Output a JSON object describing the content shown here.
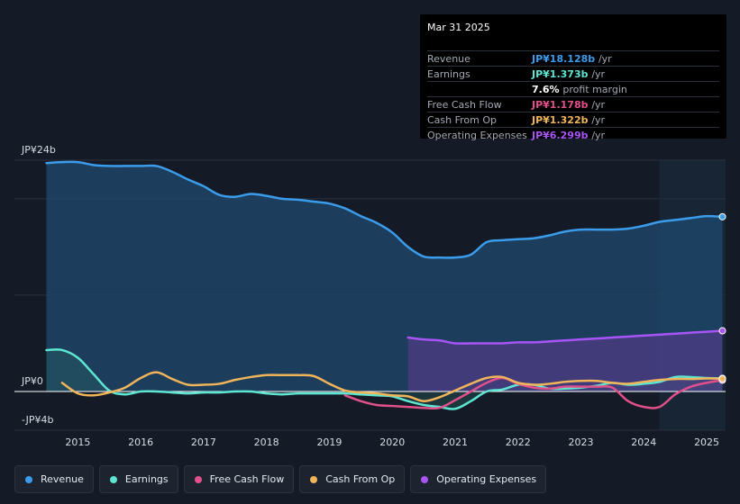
{
  "tooltip": {
    "date": "Mar 31 2025",
    "rows": [
      {
        "label": "Revenue",
        "value": "JP¥18.128b",
        "unit": "/yr",
        "color": "#3b9cec"
      },
      {
        "label": "Earnings",
        "value": "JP¥1.373b",
        "unit": "/yr",
        "color": "#5ee6d2"
      },
      {
        "label": "",
        "value": "7.6%",
        "unit": "profit margin",
        "color": "#ffffff"
      },
      {
        "label": "Free Cash Flow",
        "value": "JP¥1.178b",
        "unit": "/yr",
        "color": "#e0508a"
      },
      {
        "label": "Cash From Op",
        "value": "JP¥1.322b",
        "unit": "/yr",
        "color": "#f0b45a"
      },
      {
        "label": "Operating Expenses",
        "value": "JP¥6.299b",
        "unit": "/yr",
        "color": "#a855f7"
      }
    ]
  },
  "legend": [
    {
      "label": "Revenue",
      "color": "#3b9cec"
    },
    {
      "label": "Earnings",
      "color": "#5ee6d2"
    },
    {
      "label": "Free Cash Flow",
      "color": "#e0508a"
    },
    {
      "label": "Cash From Op",
      "color": "#f0b45a"
    },
    {
      "label": "Operating Expenses",
      "color": "#a855f7"
    }
  ],
  "chart_data": {
    "type": "area",
    "title": "",
    "xlabel": "",
    "ylabel": "",
    "y_tick_labels": [
      "JP¥24b",
      "JP¥0",
      "-JP¥4b"
    ],
    "ylim": [
      -4,
      24
    ],
    "xlim": [
      2014.45,
      2025.3
    ],
    "x_ticks": [
      2015,
      2016,
      2017,
      2018,
      2019,
      2020,
      2021,
      2022,
      2023,
      2024,
      2025
    ],
    "x_tick_labels": [
      "2015",
      "2016",
      "2017",
      "2018",
      "2019",
      "2020",
      "2021",
      "2022",
      "2023",
      "2024",
      "2025"
    ],
    "forecast_start": 2024.25,
    "series": [
      {
        "name": "Revenue",
        "color": "#3b9cec",
        "x": [
          2014.5,
          2014.75,
          2015.0,
          2015.25,
          2015.5,
          2015.75,
          2016.0,
          2016.25,
          2016.5,
          2016.75,
          2017.0,
          2017.25,
          2017.5,
          2017.75,
          2018.0,
          2018.25,
          2018.5,
          2018.75,
          2019.0,
          2019.25,
          2019.5,
          2019.75,
          2020.0,
          2020.25,
          2020.5,
          2020.75,
          2021.0,
          2021.25,
          2021.5,
          2021.75,
          2022.0,
          2022.25,
          2022.5,
          2022.75,
          2023.0,
          2023.25,
          2023.5,
          2023.75,
          2024.0,
          2024.25,
          2024.5,
          2024.75,
          2025.0,
          2025.25
        ],
        "values": [
          23.7,
          23.8,
          23.8,
          23.5,
          23.4,
          23.4,
          23.4,
          23.4,
          22.8,
          22.0,
          21.3,
          20.4,
          20.2,
          20.5,
          20.3,
          20.0,
          19.9,
          19.7,
          19.5,
          19.0,
          18.2,
          17.5,
          16.5,
          15.0,
          14.0,
          13.9,
          13.9,
          14.2,
          15.5,
          15.7,
          15.8,
          15.9,
          16.2,
          16.6,
          16.8,
          16.8,
          16.8,
          16.9,
          17.2,
          17.6,
          17.8,
          18.0,
          18.2,
          18.13
        ]
      },
      {
        "name": "Earnings",
        "color": "#5ee6d2",
        "x": [
          2014.5,
          2014.75,
          2015.0,
          2015.25,
          2015.5,
          2015.75,
          2016.0,
          2016.25,
          2016.5,
          2016.75,
          2017.0,
          2017.25,
          2017.5,
          2017.75,
          2018.0,
          2018.25,
          2018.5,
          2018.75,
          2019.0,
          2019.25,
          2019.5,
          2019.75,
          2020.0,
          2020.25,
          2020.5,
          2020.75,
          2021.0,
          2021.25,
          2021.5,
          2021.75,
          2022.0,
          2022.25,
          2022.5,
          2022.75,
          2023.0,
          2023.25,
          2023.5,
          2023.75,
          2024.0,
          2024.25,
          2024.5,
          2024.75,
          2025.0,
          2025.25
        ],
        "values": [
          4.3,
          4.3,
          3.5,
          1.8,
          0.1,
          -0.3,
          0.0,
          0.0,
          -0.1,
          -0.2,
          -0.1,
          -0.1,
          0.0,
          0.0,
          -0.2,
          -0.3,
          -0.2,
          -0.2,
          -0.2,
          -0.2,
          -0.3,
          -0.4,
          -0.5,
          -1.0,
          -1.4,
          -1.6,
          -1.8,
          -1.0,
          0.0,
          0.2,
          0.7,
          0.7,
          0.3,
          0.3,
          0.4,
          0.6,
          0.9,
          0.7,
          0.8,
          1.0,
          1.5,
          1.5,
          1.4,
          1.37
        ]
      },
      {
        "name": "Free Cash Flow",
        "color": "#e0508a",
        "x": [
          2019.25,
          2019.5,
          2019.75,
          2020.0,
          2020.25,
          2020.5,
          2020.75,
          2021.0,
          2021.25,
          2021.5,
          2021.75,
          2022.0,
          2022.25,
          2022.5,
          2022.75,
          2023.0,
          2023.25,
          2023.5,
          2023.75,
          2024.0,
          2024.25,
          2024.5,
          2024.75,
          2025.0,
          2025.25
        ],
        "values": [
          -0.4,
          -1.0,
          -1.4,
          -1.5,
          -1.6,
          -1.7,
          -1.7,
          -0.9,
          0.0,
          0.9,
          1.4,
          0.8,
          0.4,
          0.3,
          0.5,
          0.5,
          0.5,
          0.4,
          -1.0,
          -1.6,
          -1.6,
          -0.3,
          0.5,
          0.9,
          1.18
        ]
      },
      {
        "name": "Cash From Op",
        "color": "#f0b45a",
        "x": [
          2014.75,
          2015.0,
          2015.25,
          2015.5,
          2015.75,
          2016.0,
          2016.25,
          2016.5,
          2016.75,
          2017.0,
          2017.25,
          2017.5,
          2017.75,
          2018.0,
          2018.25,
          2018.5,
          2018.75,
          2019.0,
          2019.25,
          2019.5,
          2019.75,
          2020.0,
          2020.25,
          2020.5,
          2020.75,
          2021.0,
          2021.25,
          2021.5,
          2021.75,
          2022.0,
          2022.25,
          2022.5,
          2022.75,
          2023.0,
          2023.25,
          2023.5,
          2023.75,
          2024.0,
          2024.25,
          2024.5,
          2024.75,
          2025.0,
          2025.25
        ],
        "values": [
          0.9,
          -0.2,
          -0.4,
          -0.1,
          0.4,
          1.4,
          2.0,
          1.3,
          0.7,
          0.7,
          0.8,
          1.2,
          1.5,
          1.7,
          1.7,
          1.7,
          1.6,
          0.8,
          0.1,
          -0.1,
          -0.2,
          -0.4,
          -0.5,
          -1.0,
          -0.6,
          0.1,
          0.8,
          1.4,
          1.5,
          0.9,
          0.7,
          0.8,
          1.0,
          1.1,
          1.1,
          0.9,
          0.8,
          1.0,
          1.2,
          1.3,
          1.3,
          1.35,
          1.32
        ]
      },
      {
        "name": "Operating Expenses",
        "color": "#a855f7",
        "x": [
          2020.25,
          2020.5,
          2020.75,
          2021.0,
          2021.25,
          2021.5,
          2021.75,
          2022.0,
          2022.25,
          2022.5,
          2022.75,
          2023.0,
          2023.25,
          2023.5,
          2023.75,
          2024.0,
          2024.25,
          2024.5,
          2024.75,
          2025.0,
          2025.25
        ],
        "values": [
          5.6,
          5.4,
          5.3,
          5.0,
          5.0,
          5.0,
          5.0,
          5.1,
          5.1,
          5.2,
          5.3,
          5.4,
          5.5,
          5.6,
          5.7,
          5.8,
          5.9,
          6.0,
          6.1,
          6.2,
          6.3
        ]
      }
    ]
  }
}
